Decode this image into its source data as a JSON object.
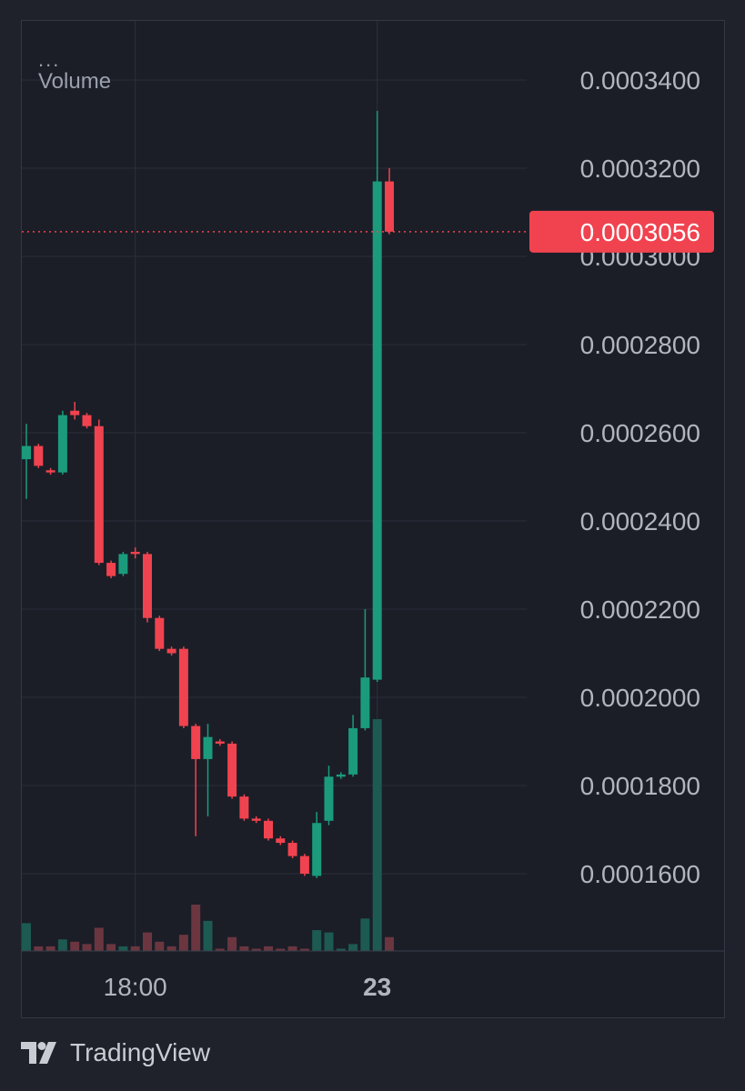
{
  "legend": {
    "dots": "...",
    "study": "Volume"
  },
  "brand": {
    "logo_icon": "tradingview-logo-icon",
    "name": "TradingView"
  },
  "colors": {
    "up": "#1b9b7c",
    "down": "#f0434f",
    "up_volume": "#1d5a52",
    "down_volume": "#6b3640",
    "grid": "#2b2f3a",
    "axis_text": "#b2b5be",
    "price_label_bg": "#f0434f"
  },
  "chart_data": {
    "type": "candlestick",
    "yaxis": {
      "ticks": [
        "0.0001600",
        "0.0001800",
        "0.0002000",
        "0.0002200",
        "0.0002400",
        "0.0002600",
        "0.0002800",
        "0.0003000",
        "0.0003200",
        "0.0003400"
      ],
      "tick_values": [
        0.00016,
        0.00018,
        0.0002,
        0.00022,
        0.00024,
        0.00026,
        0.00028,
        0.0003,
        0.00032,
        0.00034
      ]
    },
    "xaxis": {
      "ticks": [
        {
          "label": "18:00",
          "index": 9,
          "bold": false
        },
        {
          "label": "23",
          "index": 29,
          "bold": true
        }
      ]
    },
    "last_price": {
      "label": "0.0003056",
      "value": 0.0003056
    },
    "candles": [
      {
        "o": 0.000254,
        "h": 0.000262,
        "l": 0.000245,
        "c": 0.000257
      },
      {
        "o": 0.000257,
        "h": 0.0002575,
        "l": 0.000252,
        "c": 0.0002525
      },
      {
        "o": 0.0002515,
        "h": 0.000252,
        "l": 0.0002505,
        "c": 0.000251
      },
      {
        "o": 0.000251,
        "h": 0.000265,
        "l": 0.0002505,
        "c": 0.000264
      },
      {
        "o": 0.000265,
        "h": 0.000267,
        "l": 0.000263,
        "c": 0.000264
      },
      {
        "o": 0.000264,
        "h": 0.0002645,
        "l": 0.000261,
        "c": 0.0002615
      },
      {
        "o": 0.0002615,
        "h": 0.000263,
        "l": 0.00023,
        "c": 0.0002305
      },
      {
        "o": 0.0002305,
        "h": 0.000231,
        "l": 0.000227,
        "c": 0.0002275
      },
      {
        "o": 0.000228,
        "h": 0.000233,
        "l": 0.0002275,
        "c": 0.0002325
      },
      {
        "o": 0.000233,
        "h": 0.000234,
        "l": 0.0002315,
        "c": 0.0002325
      },
      {
        "o": 0.0002325,
        "h": 0.000233,
        "l": 0.000217,
        "c": 0.000218
      },
      {
        "o": 0.000218,
        "h": 0.0002185,
        "l": 0.0002105,
        "c": 0.000211
      },
      {
        "o": 0.000211,
        "h": 0.0002115,
        "l": 0.0002095,
        "c": 0.00021
      },
      {
        "o": 0.000211,
        "h": 0.0002115,
        "l": 0.000193,
        "c": 0.0001935
      },
      {
        "o": 0.0001935,
        "h": 0.000194,
        "l": 0.0001685,
        "c": 0.000186
      },
      {
        "o": 0.000186,
        "h": 0.000194,
        "l": 0.000173,
        "c": 0.000191
      },
      {
        "o": 0.00019,
        "h": 0.0001905,
        "l": 0.000189,
        "c": 0.0001895
      },
      {
        "o": 0.0001895,
        "h": 0.00019,
        "l": 0.000177,
        "c": 0.0001775
      },
      {
        "o": 0.0001775,
        "h": 0.000178,
        "l": 0.000172,
        "c": 0.0001725
      },
      {
        "o": 0.0001725,
        "h": 0.000173,
        "l": 0.0001715,
        "c": 0.000172
      },
      {
        "o": 0.000172,
        "h": 0.0001725,
        "l": 0.0001675,
        "c": 0.000168
      },
      {
        "o": 0.000168,
        "h": 0.0001685,
        "l": 0.0001665,
        "c": 0.000167
      },
      {
        "o": 0.000167,
        "h": 0.0001675,
        "l": 0.0001635,
        "c": 0.000164
      },
      {
        "o": 0.000164,
        "h": 0.0001645,
        "l": 0.0001595,
        "c": 0.00016
      },
      {
        "o": 0.0001595,
        "h": 0.000174,
        "l": 0.000159,
        "c": 0.0001715
      },
      {
        "o": 0.000172,
        "h": 0.0001845,
        "l": 0.000171,
        "c": 0.000182
      },
      {
        "o": 0.000182,
        "h": 0.000183,
        "l": 0.0001815,
        "c": 0.0001825
      },
      {
        "o": 0.0001825,
        "h": 0.000196,
        "l": 0.000182,
        "c": 0.000193
      },
      {
        "o": 0.000193,
        "h": 0.00022,
        "l": 0.0001925,
        "c": 0.0002045
      },
      {
        "o": 0.000204,
        "h": 0.000333,
        "l": 0.0002035,
        "c": 0.000317
      },
      {
        "o": 0.000317,
        "h": 0.00032,
        "l": 0.000305,
        "c": 0.0003056
      }
    ],
    "volume": [
      0.12,
      0.02,
      0.02,
      0.05,
      0.04,
      0.03,
      0.1,
      0.03,
      0.02,
      0.02,
      0.08,
      0.04,
      0.02,
      0.07,
      0.2,
      0.13,
      0.01,
      0.06,
      0.02,
      0.01,
      0.02,
      0.01,
      0.02,
      0.01,
      0.09,
      0.08,
      0.01,
      0.03,
      0.14,
      1.0,
      0.06
    ]
  }
}
